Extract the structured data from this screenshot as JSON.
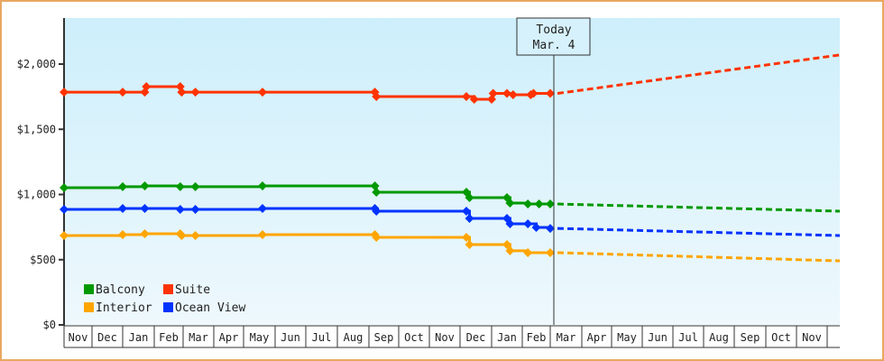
{
  "chart_data": {
    "type": "line",
    "title": "",
    "xlabel": "",
    "ylabel": "",
    "ylim": [
      0,
      2350
    ],
    "y_ticks": [
      "$0",
      "$500",
      "$1,000",
      "$1,500",
      "$2,000"
    ],
    "y_tick_values": [
      0,
      500,
      1000,
      1500,
      2000
    ],
    "x_tick_labels": [
      "Nov",
      "Dec",
      "Jan",
      "Feb",
      "Mar",
      "Apr",
      "May",
      "Jun",
      "Jul",
      "Aug",
      "Sep",
      "Oct",
      "Nov",
      "Dec",
      "Jan",
      "Feb",
      "Mar",
      "Apr",
      "May",
      "Jun",
      "Jul",
      "Aug",
      "Sep",
      "Oct",
      "Nov"
    ],
    "grid": false,
    "legend_position": "bottom-left inside plot",
    "annotation": {
      "line1": "Today",
      "line2": "Mar. 4"
    },
    "series": [
      {
        "name": "Suite",
        "color": "#ff3300",
        "historical": [
          [
            0,
            1785
          ],
          [
            2,
            1785
          ],
          [
            2.7,
            1785
          ],
          [
            2.75,
            1827
          ],
          [
            3.9,
            1827
          ],
          [
            3.95,
            1785
          ],
          [
            4.4,
            1785
          ],
          [
            6.6,
            1785
          ],
          [
            10.2,
            1785
          ],
          [
            10.25,
            1751
          ],
          [
            13.2,
            1751
          ],
          [
            13.45,
            1730
          ],
          [
            14.0,
            1730
          ],
          [
            14.05,
            1775
          ],
          [
            14.5,
            1775
          ],
          [
            14.7,
            1765
          ],
          [
            15.3,
            1765
          ],
          [
            15.4,
            1775
          ],
          [
            16.0,
            1775
          ]
        ],
        "forecast": [
          [
            16.0,
            1775
          ],
          [
            25.4,
            2070
          ]
        ]
      },
      {
        "name": "Balcony",
        "color": "#009900",
        "historical": [
          [
            0,
            1052
          ],
          [
            2,
            1060
          ],
          [
            2.7,
            1066
          ],
          [
            3.9,
            1060
          ],
          [
            4.4,
            1060
          ],
          [
            6.6,
            1066
          ],
          [
            10.2,
            1066
          ],
          [
            10.25,
            1017
          ],
          [
            13.2,
            1017
          ],
          [
            13.3,
            976
          ],
          [
            14.5,
            976
          ],
          [
            14.6,
            934
          ],
          [
            15.2,
            927
          ],
          [
            15.6,
            927
          ],
          [
            16.0,
            927
          ]
        ],
        "forecast": [
          [
            16.0,
            927
          ],
          [
            25.4,
            872
          ]
        ]
      },
      {
        "name": "Ocean View",
        "color": "#0033ff",
        "historical": [
          [
            0,
            886
          ],
          [
            2,
            893
          ],
          [
            2.7,
            893
          ],
          [
            3.9,
            886
          ],
          [
            4.4,
            886
          ],
          [
            6.6,
            893
          ],
          [
            10.2,
            893
          ],
          [
            10.25,
            872
          ],
          [
            13.2,
            872
          ],
          [
            13.3,
            817
          ],
          [
            14.5,
            817
          ],
          [
            14.6,
            775
          ],
          [
            15.2,
            775
          ],
          [
            15.5,
            747
          ],
          [
            16.0,
            740
          ]
        ],
        "forecast": [
          [
            16.0,
            740
          ],
          [
            25.4,
            685
          ]
        ]
      },
      {
        "name": "Interior",
        "color": "#ffa500",
        "historical": [
          [
            0,
            685
          ],
          [
            2,
            692
          ],
          [
            2.7,
            699
          ],
          [
            3.9,
            699
          ],
          [
            3.95,
            685
          ],
          [
            4.4,
            685
          ],
          [
            6.6,
            692
          ],
          [
            10.2,
            692
          ],
          [
            10.25,
            671
          ],
          [
            13.2,
            671
          ],
          [
            13.3,
            616
          ],
          [
            14.5,
            616
          ],
          [
            14.6,
            568
          ],
          [
            15.2,
            554
          ],
          [
            16.0,
            554
          ]
        ],
        "forecast": [
          [
            16.0,
            554
          ],
          [
            25.4,
            491
          ]
        ]
      }
    ]
  },
  "legend": [
    {
      "label": "Balcony",
      "color": "#009900"
    },
    {
      "label": "Suite",
      "color": "#ff3300"
    },
    {
      "label": "Interior",
      "color": "#ffa500"
    },
    {
      "label": "Ocean View",
      "color": "#0033ff"
    }
  ]
}
